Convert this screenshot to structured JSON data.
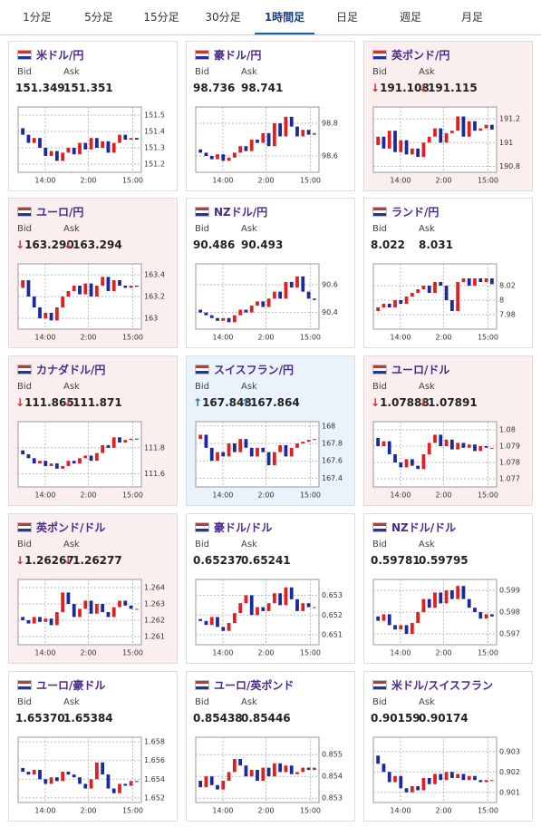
{
  "tabs": [
    "1分足",
    "5分足",
    "15分足",
    "30分足",
    "1時間足",
    "日足",
    "週足",
    "月足"
  ],
  "active_tab": 4,
  "up_color": "#e02020",
  "down_color": "#1a2a9a",
  "cards": [
    {
      "name": "米ドル/円",
      "bid_label": "Bid",
      "ask_label": "Ask",
      "bid": "151.349",
      "ask": "151.351",
      "chart": {
        "type": "candlestick",
        "ylim": [
          151.15,
          151.55
        ],
        "yticks": [
          151.2,
          151.3,
          151.4,
          151.5
        ],
        "xticks": [
          "14:00",
          "2:00",
          "15:00"
        ],
        "close": [
          151.42,
          151.38,
          151.33,
          151.36,
          151.3,
          151.25,
          151.28,
          151.22,
          151.27,
          151.3,
          151.26,
          151.33,
          151.29,
          151.36,
          151.3,
          151.34,
          151.27,
          151.33,
          151.38,
          151.35,
          151.36,
          151.35
        ]
      }
    },
    {
      "name": "豪ドル/円",
      "bid_label": "Bid",
      "ask_label": "Ask",
      "bid": "98.736",
      "ask": "98.741",
      "chart": {
        "type": "candlestick",
        "ylim": [
          98.5,
          98.9
        ],
        "yticks": [
          98.6,
          98.8
        ],
        "xticks": [
          "14:00",
          "2:00",
          "15:00"
        ],
        "close": [
          98.64,
          98.62,
          98.6,
          98.58,
          98.61,
          98.57,
          98.59,
          98.62,
          98.66,
          98.63,
          98.7,
          98.68,
          98.74,
          98.66,
          98.8,
          98.72,
          98.84,
          98.78,
          98.72,
          98.76,
          98.73,
          98.74
        ]
      }
    },
    {
      "name": "英ポンド/円",
      "bid_label": "Bid",
      "ask_label": "Ask",
      "bid_arrow": "↓",
      "ask_arrow": "↓",
      "arrow_color": "#d03030",
      "background": "#fbeeee",
      "bid": "191.108",
      "ask": "191.115",
      "chart": {
        "type": "candlestick",
        "ylim": [
          190.75,
          191.3
        ],
        "yticks": [
          190.8,
          191,
          191.2
        ],
        "xticks": [
          "14:00",
          "2:00",
          "15:00"
        ],
        "close": [
          190.98,
          191.05,
          190.95,
          191.1,
          190.92,
          191.02,
          190.9,
          190.95,
          190.88,
          191.0,
          191.05,
          191.12,
          191.0,
          191.08,
          191.1,
          191.22,
          191.05,
          191.18,
          191.1,
          191.12,
          191.15,
          191.11
        ]
      }
    },
    {
      "name": "ユーロ/円",
      "bid_label": "Bid",
      "ask_label": "Ask",
      "bid_arrow": "↓",
      "ask_arrow": "↓",
      "arrow_color": "#d03030",
      "background": "#fbeeee",
      "bid": "163.290",
      "ask": "163.294",
      "chart": {
        "type": "candlestick",
        "ylim": [
          162.9,
          163.5
        ],
        "yticks": [
          163,
          163.2,
          163.4
        ],
        "xticks": [
          "14:00",
          "2:00",
          "15:00"
        ],
        "close": [
          163.28,
          163.35,
          163.2,
          163.1,
          163.0,
          163.05,
          162.98,
          163.1,
          163.2,
          163.25,
          163.3,
          163.22,
          163.32,
          163.2,
          163.3,
          163.38,
          163.25,
          163.35,
          163.3,
          163.28,
          163.3,
          163.29
        ]
      }
    },
    {
      "name": "NZドル/円",
      "bid_label": "Bid",
      "ask_label": "Ask",
      "bid": "90.486",
      "ask": "90.493",
      "chart": {
        "type": "candlestick",
        "ylim": [
          90.28,
          90.75
        ],
        "yticks": [
          90.4,
          90.6
        ],
        "xticks": [
          "14:00",
          "2:00",
          "15:00"
        ],
        "close": [
          90.42,
          90.4,
          90.38,
          90.36,
          90.34,
          90.36,
          90.33,
          90.38,
          90.42,
          90.4,
          90.45,
          90.48,
          90.44,
          90.5,
          90.55,
          90.5,
          90.62,
          90.58,
          90.66,
          90.55,
          90.5,
          90.49
        ]
      }
    },
    {
      "name": "ランド/円",
      "bid_label": "Bid",
      "ask_label": "Ask",
      "bid": "8.022",
      "ask": "8.031",
      "chart": {
        "type": "candlestick",
        "ylim": [
          7.96,
          8.05
        ],
        "yticks": [
          7.98,
          8,
          8.02
        ],
        "xticks": [
          "14:00",
          "2:00",
          "15:00"
        ],
        "close": [
          7.985,
          7.99,
          7.995,
          7.99,
          8.0,
          7.995,
          8.005,
          8.01,
          8.015,
          8.02,
          8.01,
          8.025,
          8.02,
          8.0,
          7.985,
          8.025,
          8.03,
          8.02,
          8.03,
          8.025,
          8.03,
          8.022
        ]
      }
    },
    {
      "name": "カナダドル/円",
      "bid_label": "Bid",
      "ask_label": "Ask",
      "bid_arrow": "↓",
      "ask_arrow": "↓",
      "arrow_color": "#d03030",
      "background": "#fbeeee",
      "bid": "111.865",
      "ask": "111.871",
      "chart": {
        "type": "candlestick",
        "ylim": [
          111.5,
          112.0
        ],
        "yticks": [
          111.6,
          111.8
        ],
        "xticks": [
          "14:00",
          "2:00",
          "15:00"
        ],
        "close": [
          111.78,
          111.75,
          111.72,
          111.68,
          111.7,
          111.66,
          111.68,
          111.64,
          111.66,
          111.7,
          111.68,
          111.72,
          111.74,
          111.7,
          111.76,
          111.82,
          111.8,
          111.88,
          111.84,
          111.86,
          111.87,
          111.865
        ]
      }
    },
    {
      "name": "スイスフラン/円",
      "bid_label": "Bid",
      "ask_label": "Ask",
      "bid_arrow": "↑",
      "ask_arrow": "↑",
      "arrow_color": "#2a6ad0",
      "background": "#eaf3fb",
      "bid": "167.848",
      "ask": "167.864",
      "chart": {
        "type": "candlestick",
        "ylim": [
          167.3,
          168.05
        ],
        "yticks": [
          167.4,
          167.6,
          167.8,
          168
        ],
        "xticks": [
          "14:00",
          "2:00",
          "15:00"
        ],
        "close": [
          167.85,
          167.9,
          167.75,
          167.6,
          167.7,
          167.65,
          167.8,
          167.7,
          167.85,
          167.75,
          167.65,
          167.75,
          167.7,
          167.55,
          167.7,
          167.78,
          167.65,
          167.75,
          167.8,
          167.82,
          167.84,
          167.85
        ]
      }
    },
    {
      "name": "ユーロ/ドル",
      "bid_label": "Bid",
      "ask_label": "Ask",
      "bid_arrow": "↓",
      "ask_arrow": "↓",
      "arrow_color": "#d03030",
      "background": "#fbeeee",
      "bid": "1.07888",
      "ask": "1.07891",
      "chart": {
        "type": "candlestick",
        "ylim": [
          1.0765,
          1.0805
        ],
        "yticks": [
          1.077,
          1.078,
          1.079,
          1.08
        ],
        "xticks": [
          "14:00",
          "2:00",
          "15:00"
        ],
        "close": [
          1.0795,
          1.079,
          1.0793,
          1.0785,
          1.078,
          1.0777,
          1.0782,
          1.0778,
          1.0776,
          1.0785,
          1.0792,
          1.0797,
          1.079,
          1.0794,
          1.0788,
          1.0792,
          1.0789,
          1.0791,
          1.0787,
          1.079,
          1.0789,
          1.0789
        ]
      }
    },
    {
      "name": "英ポンド/ドル",
      "bid_label": "Bid",
      "ask_label": "Ask",
      "bid_arrow": "↓",
      "ask_arrow": "↓",
      "arrow_color": "#d03030",
      "background": "#fbeeee",
      "bid": "1.26267",
      "ask": "1.26277",
      "chart": {
        "type": "candlestick",
        "ylim": [
          1.2605,
          1.2645
        ],
        "yticks": [
          1.261,
          1.262,
          1.263,
          1.264
        ],
        "xticks": [
          "14:00",
          "2:00",
          "15:00"
        ],
        "close": [
          1.2622,
          1.262,
          1.2618,
          1.2622,
          1.2619,
          1.2621,
          1.2617,
          1.2625,
          1.2637,
          1.263,
          1.2622,
          1.2627,
          1.2632,
          1.2624,
          1.263,
          1.2625,
          1.2622,
          1.2628,
          1.2632,
          1.2629,
          1.2627,
          1.2627
        ]
      }
    },
    {
      "name": "豪ドル/ドル",
      "bid_label": "Bid",
      "ask_label": "Ask",
      "bid": "0.65237",
      "ask": "0.65241",
      "chart": {
        "type": "candlestick",
        "ylim": [
          0.6505,
          0.6538
        ],
        "yticks": [
          0.651,
          0.652,
          0.653
        ],
        "xticks": [
          "14:00",
          "2:00",
          "15:00"
        ],
        "close": [
          0.6518,
          0.6517,
          0.6515,
          0.6519,
          0.6514,
          0.6512,
          0.6516,
          0.6521,
          0.6526,
          0.653,
          0.652,
          0.6524,
          0.6522,
          0.6526,
          0.6531,
          0.6525,
          0.6534,
          0.6528,
          0.6522,
          0.6526,
          0.6524,
          0.6524
        ]
      }
    },
    {
      "name": "NZドル/ドル",
      "bid_label": "Bid",
      "ask_label": "Ask",
      "bid": "0.59781",
      "ask": "0.59795",
      "chart": {
        "type": "candlestick",
        "ylim": [
          0.5965,
          0.5995
        ],
        "yticks": [
          0.597,
          0.598,
          0.599
        ],
        "xticks": [
          "14:00",
          "2:00",
          "15:00"
        ],
        "close": [
          0.5978,
          0.5976,
          0.5979,
          0.5974,
          0.5972,
          0.5974,
          0.597,
          0.5975,
          0.598,
          0.5986,
          0.5982,
          0.5989,
          0.5984,
          0.599,
          0.5986,
          0.5992,
          0.5986,
          0.5982,
          0.598,
          0.5977,
          0.5979,
          0.5978
        ]
      }
    },
    {
      "name": "ユーロ/豪ドル",
      "bid_label": "Bid",
      "ask_label": "Ask",
      "bid": "1.65370",
      "ask": "1.65384",
      "chart": {
        "type": "candlestick",
        "ylim": [
          1.6515,
          1.6585
        ],
        "yticks": [
          1.652,
          1.654,
          1.656,
          1.658
        ],
        "xticks": [
          "14:00",
          "2:00",
          "15:00"
        ],
        "close": [
          1.6552,
          1.6548,
          1.6545,
          1.655,
          1.654,
          1.6535,
          1.6542,
          1.6538,
          1.6548,
          1.6545,
          1.6542,
          1.6535,
          1.653,
          1.654,
          1.6558,
          1.6545,
          1.653,
          1.6525,
          1.6535,
          1.6533,
          1.6538,
          1.6537
        ]
      }
    },
    {
      "name": "ユーロ/英ポンド",
      "bid_label": "Bid",
      "ask_label": "Ask",
      "bid": "0.85438",
      "ask": "0.85446",
      "chart": {
        "type": "candlestick",
        "ylim": [
          0.8528,
          0.8558
        ],
        "yticks": [
          0.853,
          0.854,
          0.855
        ],
        "xticks": [
          "14:00",
          "2:00",
          "15:00"
        ],
        "close": [
          0.8538,
          0.8535,
          0.854,
          0.8536,
          0.8534,
          0.8538,
          0.8542,
          0.8548,
          0.8545,
          0.854,
          0.8543,
          0.8538,
          0.8544,
          0.854,
          0.8546,
          0.8542,
          0.8545,
          0.8541,
          0.8542,
          0.8544,
          0.8543,
          0.8544
        ]
      }
    },
    {
      "name": "米ドル/スイスフラン",
      "bid_label": "Bid",
      "ask_label": "Ask",
      "bid": "0.90159",
      "ask": "0.90174",
      "chart": {
        "type": "candlestick",
        "ylim": [
          0.9005,
          0.9037
        ],
        "yticks": [
          0.901,
          0.902,
          0.903
        ],
        "xticks": [
          "14:00",
          "2:00",
          "15:00"
        ],
        "close": [
          0.9028,
          0.9024,
          0.902,
          0.9015,
          0.9018,
          0.9012,
          0.901,
          0.9013,
          0.9011,
          0.9017,
          0.9014,
          0.9019,
          0.9016,
          0.902,
          0.9017,
          0.9019,
          0.9016,
          0.9018,
          0.9016,
          0.9015,
          0.9016,
          0.9016
        ]
      }
    }
  ]
}
